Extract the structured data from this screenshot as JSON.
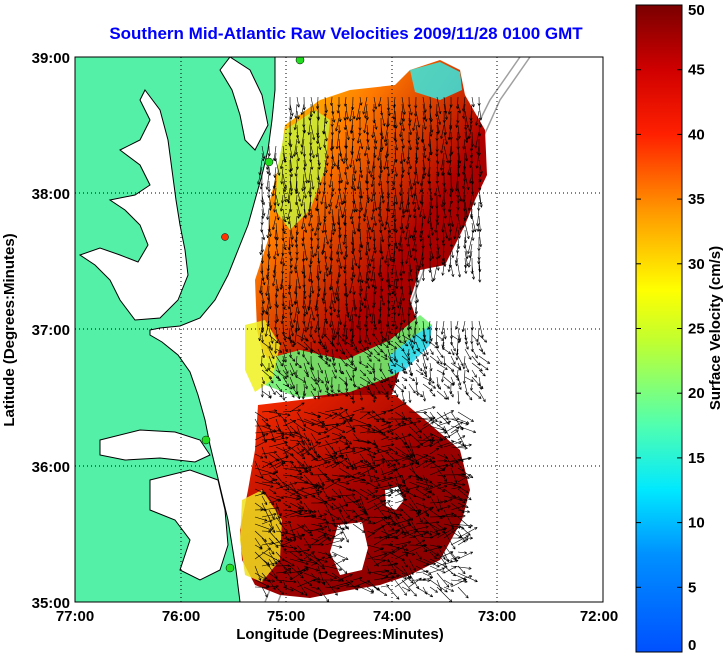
{
  "title": "Southern Mid-Atlantic Raw Velocities 2009/11/28 0100 GMT",
  "x_axis": {
    "label": "Longitude (Degrees:Minutes)",
    "ticks": [
      "77:00",
      "76:00",
      "75:00",
      "74:00",
      "73:00",
      "72:00"
    ],
    "range": [
      -77,
      -72
    ]
  },
  "y_axis": {
    "label": "Latitude (Degrees:Minutes)",
    "ticks": [
      "35:00",
      "36:00",
      "37:00",
      "38:00",
      "39:00"
    ],
    "range": [
      35,
      39
    ]
  },
  "colorbar": {
    "label": "Surface Velocity (cm/s)",
    "ticks": [
      "0",
      "5",
      "10",
      "15",
      "20",
      "25",
      "30",
      "35",
      "40",
      "45",
      "50"
    ],
    "range": [
      0,
      50
    ],
    "colormap": "jet"
  },
  "colors": {
    "land": "#55f0a8",
    "coastline": "#000000",
    "bathymetry": "#a0a0a0",
    "site_active": "#22dd22",
    "site_alert": "#ff3300",
    "title": "#0000ff",
    "grid": "#000000"
  },
  "grid": "dotted",
  "chart_data": {
    "type": "heatmap",
    "layers": [
      "surface velocity magnitude (color)",
      "current vectors (arrows)"
    ],
    "x": [
      "77:00",
      "76:00",
      "75:00",
      "74:00",
      "73:00",
      "72:00"
    ],
    "y": [
      "35:00",
      "36:00",
      "37:00",
      "38:00",
      "39:00"
    ],
    "zlim": [
      0,
      50
    ],
    "approx_regions": [
      {
        "lon": -74.6,
        "lat": 38.2,
        "velocity": 48
      },
      {
        "lon": -74.9,
        "lat": 38.0,
        "velocity": 22
      },
      {
        "lon": -73.8,
        "lat": 38.8,
        "velocity": 12
      },
      {
        "lon": -74.7,
        "lat": 37.5,
        "velocity": 45
      },
      {
        "lon": -74.0,
        "lat": 36.75,
        "velocity": 15
      },
      {
        "lon": -74.8,
        "lat": 36.6,
        "velocity": 20
      },
      {
        "lon": -74.5,
        "lat": 35.9,
        "velocity": 42
      },
      {
        "lon": -74.9,
        "lat": 35.5,
        "velocity": 30
      }
    ]
  }
}
